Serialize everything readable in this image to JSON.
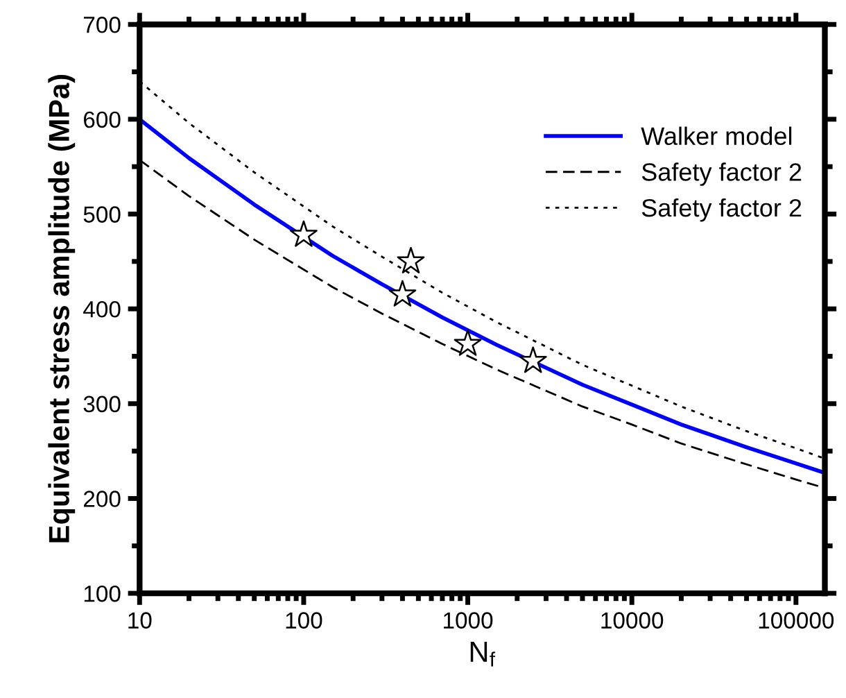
{
  "chart_data": {
    "type": "line",
    "xlabel": "N$_{f}$",
    "ylabel": "Equivalent stress amplitude (MPa)",
    "log": "x",
    "xlim": [
      10,
      150000
    ],
    "xticks": [
      10,
      100,
      1000,
      10000,
      100000
    ],
    "ylim": [
      100,
      700
    ],
    "yticks": [
      100,
      200,
      300,
      400,
      500,
      600,
      700
    ],
    "grid": false,
    "legend": "top right",
    "series": [
      {
        "name": "Walker model",
        "color": "#0000ff",
        "line_style": "solid",
        "marker": "none",
        "x": [
          10,
          20,
          50,
          150,
          300,
          700,
          1500,
          5000,
          10000,
          20000,
          50000,
          100000,
          150000
        ],
        "values": [
          600,
          559,
          510,
          456,
          426,
          391,
          362,
          320,
          299,
          278,
          254,
          237,
          227
        ]
      },
      {
        "name": "Safety factor 2",
        "color": "#000000",
        "line_style": "dashed",
        "marker": "none",
        "x": [
          10,
          20,
          50,
          150,
          300,
          700,
          1500,
          5000,
          10000,
          20000,
          50000,
          100000,
          150000
        ],
        "values": [
          557,
          519,
          473,
          423,
          395,
          363,
          336,
          297,
          278,
          258,
          236,
          220,
          211
        ]
      },
      {
        "name": "Safety factor 2",
        "color": "#000000",
        "line_style": "dotted",
        "marker": "none",
        "x": [
          10,
          20,
          50,
          150,
          300,
          700,
          1500,
          5000,
          10000,
          20000,
          50000,
          100000,
          150000
        ],
        "values": [
          640,
          596,
          544,
          487,
          455,
          417,
          386,
          341,
          319,
          297,
          271,
          253,
          242
        ]
      },
      {
        "type": "scatter",
        "color": "#000000",
        "marker": "star",
        "x": [
          100,
          400,
          450,
          1000,
          2500
        ],
        "values": [
          478,
          415,
          450,
          363,
          345
        ]
      }
    ]
  }
}
